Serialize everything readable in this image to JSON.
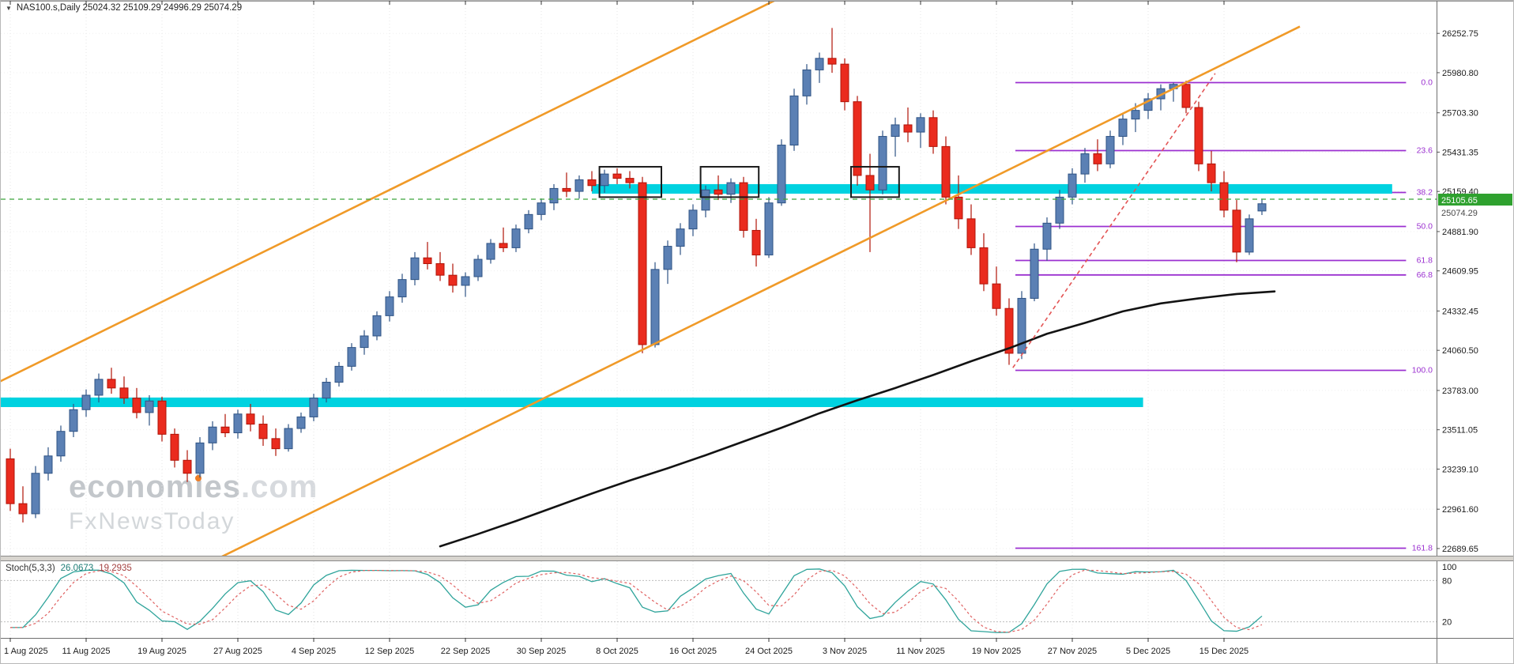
{
  "header": {
    "symbol_line": "NAS100.s,Daily  25024.32 25109.29 24996.29 25074.29",
    "symbol": "NAS100.s",
    "timeframe": "Daily",
    "open": "25024.32",
    "high": "25109.29",
    "low": "24996.29",
    "close": "25074.29"
  },
  "icons": {
    "collapse_triangle": "▼"
  },
  "watermark": {
    "brand_pre": "econom",
    "brand_i": "i",
    "brand_post": "es",
    "brand_suffix": ".com",
    "subbrand": "FxNewsToday"
  },
  "stoch": {
    "name": "Stoch(5,3,3)",
    "k_value": "26.0673",
    "d_value": "19.2935",
    "label": "Stoch(5,3,3) 26.0673 19.2935"
  },
  "axis": {
    "current_price_label": "25105.65",
    "secondary_price_label": "25074.29"
  },
  "chart_data": {
    "type": "candlestick",
    "title": "NAS100.s Daily",
    "price_axis_ticks": [
      26252.75,
      25980.8,
      25703.3,
      25431.35,
      25159.4,
      24881.9,
      24609.95,
      24332.45,
      24060.5,
      23783.0,
      23511.05,
      23239.1,
      22961.6,
      22689.65
    ],
    "x_tick_labels": [
      "1 Aug 2025",
      "11 Aug 2025",
      "19 Aug 2025",
      "27 Aug 2025",
      "4 Sep 2025",
      "12 Sep 2025",
      "22 Sep 2025",
      "30 Sep 2025",
      "8 Oct 2025",
      "16 Oct 2025",
      "24 Oct 2025",
      "3 Nov 2025",
      "11 Nov 2025",
      "19 Nov 2025",
      "27 Nov 2025",
      "5 Dec 2025",
      "15 Dec 2025"
    ],
    "bars_per_x_tick": 6,
    "current_price": 25105.65,
    "colors": {
      "up": "#5b80b4",
      "up_border": "#2f5384",
      "down": "#ea2b1e",
      "down_border": "#b01408",
      "grid": "#e4e4e4",
      "current_line": "#3aa33a",
      "tag_bg": "#2fa12f"
    },
    "candles_ohlc": [
      [
        23310,
        23380,
        22950,
        23000
      ],
      [
        23000,
        23120,
        22870,
        22930
      ],
      [
        22930,
        23260,
        22900,
        23210
      ],
      [
        23210,
        23390,
        23160,
        23330
      ],
      [
        23330,
        23540,
        23290,
        23500
      ],
      [
        23500,
        23690,
        23460,
        23650
      ],
      [
        23650,
        23790,
        23600,
        23750
      ],
      [
        23750,
        23900,
        23700,
        23860
      ],
      [
        23860,
        23940,
        23760,
        23800
      ],
      [
        23800,
        23880,
        23690,
        23730
      ],
      [
        23730,
        23800,
        23590,
        23630
      ],
      [
        23630,
        23750,
        23540,
        23710
      ],
      [
        23710,
        23740,
        23430,
        23480
      ],
      [
        23480,
        23520,
        23250,
        23300
      ],
      [
        23300,
        23370,
        23150,
        23210
      ],
      [
        23210,
        23460,
        23180,
        23420
      ],
      [
        23420,
        23570,
        23370,
        23530
      ],
      [
        23530,
        23620,
        23460,
        23490
      ],
      [
        23490,
        23650,
        23450,
        23620
      ],
      [
        23620,
        23690,
        23500,
        23550
      ],
      [
        23550,
        23610,
        23400,
        23450
      ],
      [
        23450,
        23520,
        23330,
        23380
      ],
      [
        23380,
        23550,
        23360,
        23520
      ],
      [
        23520,
        23630,
        23490,
        23600
      ],
      [
        23600,
        23760,
        23570,
        23730
      ],
      [
        23730,
        23870,
        23700,
        23840
      ],
      [
        23840,
        23980,
        23810,
        23950
      ],
      [
        23950,
        24110,
        23920,
        24080
      ],
      [
        24080,
        24200,
        24030,
        24160
      ],
      [
        24160,
        24330,
        24130,
        24300
      ],
      [
        24300,
        24470,
        24260,
        24430
      ],
      [
        24430,
        24590,
        24390,
        24550
      ],
      [
        24550,
        24740,
        24510,
        24700
      ],
      [
        24700,
        24810,
        24620,
        24660
      ],
      [
        24660,
        24740,
        24540,
        24580
      ],
      [
        24580,
        24660,
        24460,
        24510
      ],
      [
        24510,
        24600,
        24430,
        24570
      ],
      [
        24570,
        24720,
        24540,
        24690
      ],
      [
        24690,
        24830,
        24660,
        24800
      ],
      [
        24800,
        24910,
        24740,
        24770
      ],
      [
        24770,
        24930,
        24740,
        24900
      ],
      [
        24900,
        25030,
        24870,
        25000
      ],
      [
        25000,
        25110,
        24960,
        25080
      ],
      [
        25080,
        25210,
        25030,
        25180
      ],
      [
        25180,
        25290,
        25120,
        25160
      ],
      [
        25160,
        25270,
        25110,
        25240
      ],
      [
        25240,
        25300,
        25160,
        25200
      ],
      [
        25200,
        25310,
        25150,
        25280
      ],
      [
        25280,
        25320,
        25210,
        25250
      ],
      [
        25250,
        25300,
        25180,
        25220
      ],
      [
        25220,
        25260,
        24040,
        24100
      ],
      [
        24100,
        24670,
        24080,
        24620
      ],
      [
        24620,
        24820,
        24520,
        24780
      ],
      [
        24780,
        24940,
        24720,
        24900
      ],
      [
        24900,
        25070,
        24850,
        25030
      ],
      [
        25030,
        25200,
        24980,
        25170
      ],
      [
        25170,
        25270,
        25100,
        25140
      ],
      [
        25140,
        25250,
        25080,
        25220
      ],
      [
        25220,
        25260,
        24840,
        24890
      ],
      [
        24890,
        24970,
        24640,
        24720
      ],
      [
        24720,
        25120,
        24700,
        25080
      ],
      [
        25080,
        25520,
        25060,
        25480
      ],
      [
        25480,
        25870,
        25440,
        25820
      ],
      [
        25820,
        26040,
        25760,
        26000
      ],
      [
        26000,
        26120,
        25910,
        26080
      ],
      [
        26080,
        26290,
        25980,
        26040
      ],
      [
        26040,
        26080,
        25720,
        25780
      ],
      [
        25780,
        25820,
        25200,
        25270
      ],
      [
        25270,
        25420,
        24740,
        25170
      ],
      [
        25170,
        25580,
        25140,
        25540
      ],
      [
        25540,
        25670,
        25400,
        25620
      ],
      [
        25620,
        25740,
        25500,
        25570
      ],
      [
        25570,
        25700,
        25460,
        25670
      ],
      [
        25670,
        25720,
        25420,
        25470
      ],
      [
        25470,
        25540,
        25070,
        25120
      ],
      [
        25120,
        25270,
        24900,
        24970
      ],
      [
        24970,
        25070,
        24720,
        24770
      ],
      [
        24770,
        24870,
        24470,
        24520
      ],
      [
        24520,
        24640,
        24300,
        24350
      ],
      [
        24350,
        24420,
        23960,
        24040
      ],
      [
        24040,
        24470,
        24000,
        24420
      ],
      [
        24420,
        24800,
        24400,
        24760
      ],
      [
        24760,
        24980,
        24680,
        24940
      ],
      [
        24940,
        25170,
        24900,
        25120
      ],
      [
        25120,
        25320,
        25070,
        25280
      ],
      [
        25280,
        25460,
        25220,
        25420
      ],
      [
        25420,
        25520,
        25300,
        25350
      ],
      [
        25350,
        25580,
        25320,
        25540
      ],
      [
        25540,
        25700,
        25480,
        25660
      ],
      [
        25660,
        25770,
        25570,
        25720
      ],
      [
        25720,
        25840,
        25660,
        25800
      ],
      [
        25800,
        25900,
        25720,
        25870
      ],
      [
        25870,
        25912,
        25780,
        25900
      ],
      [
        25900,
        25925,
        25700,
        25740
      ],
      [
        25740,
        25780,
        25300,
        25350
      ],
      [
        25350,
        25440,
        25160,
        25220
      ],
      [
        25220,
        25300,
        24980,
        25030
      ],
      [
        25030,
        25100,
        24670,
        24740
      ],
      [
        24740,
        25000,
        24720,
        24970
      ],
      [
        25024.32,
        25109.29,
        24996.29,
        25074.29
      ]
    ],
    "overlays": {
      "fibonacci": {
        "color": "#9b30d0",
        "start_bar": 79.5,
        "end_bar": 110.4,
        "levels": [
          {
            "label": "0.0",
            "price": 25912
          },
          {
            "label": "23.6",
            "price": 25442
          },
          {
            "label": "38.2",
            "price": 25152
          },
          {
            "label": "50.0",
            "price": 24917
          },
          {
            "label": "61.8",
            "price": 24682
          },
          {
            "label": "66.8",
            "price": 24582
          },
          {
            "label": "100.0",
            "price": 23922
          },
          {
            "label": "161.8",
            "price": 22692
          }
        ]
      },
      "channel": {
        "color": "#f09a28",
        "slope_per_bar": 43,
        "upper": {
          "bar": 0,
          "price": 23880
        },
        "lower": {
          "bar": 17,
          "price": 22645
        }
      },
      "support_zones": [
        {
          "price_top": 25210,
          "price_bottom": 25144,
          "from_bar": 46.0,
          "to_bar": 109.3,
          "color": "#00d2e0"
        },
        {
          "price_top": 23734,
          "price_bottom": 23668,
          "from_bar": -0.8,
          "to_bar": 89.6,
          "color": "#00d2e0"
        }
      ],
      "rectangles": [
        {
          "from_bar": 46.6,
          "to_bar": 51.5,
          "price_top": 25330,
          "price_bottom": 25120
        },
        {
          "from_bar": 54.6,
          "to_bar": 59.2,
          "price_top": 25330,
          "price_bottom": 25120
        },
        {
          "from_bar": 66.5,
          "to_bar": 70.3,
          "price_top": 25330,
          "price_bottom": 25120
        }
      ],
      "broken_trendline": {
        "color": "#e35454",
        "style": "dashed",
        "from": {
          "bar": 79.3,
          "price": 23940
        },
        "to": {
          "bar": 95.3,
          "price": 25975
        }
      },
      "moving_average": {
        "color": "#131313",
        "points": [
          [
            34,
            22705
          ],
          [
            37,
            22790
          ],
          [
            40,
            22880
          ],
          [
            43,
            22975
          ],
          [
            46,
            23070
          ],
          [
            49,
            23160
          ],
          [
            52,
            23245
          ],
          [
            55,
            23335
          ],
          [
            58,
            23430
          ],
          [
            61,
            23525
          ],
          [
            64,
            23625
          ],
          [
            67,
            23715
          ],
          [
            70,
            23800
          ],
          [
            73,
            23890
          ],
          [
            76,
            23985
          ],
          [
            79,
            24075
          ],
          [
            82,
            24175
          ],
          [
            85,
            24250
          ],
          [
            88,
            24330
          ],
          [
            91,
            24385
          ],
          [
            94,
            24420
          ],
          [
            97,
            24450
          ],
          [
            100,
            24468
          ]
        ]
      }
    },
    "stochastic": {
      "k_period": 5,
      "slowing": 3,
      "d_period": 3,
      "k_color": "#2fa49b",
      "d_color": "#e06161",
      "levels": [
        100,
        80,
        20
      ],
      "last_k": 26.0673,
      "last_d": 19.2935
    }
  }
}
